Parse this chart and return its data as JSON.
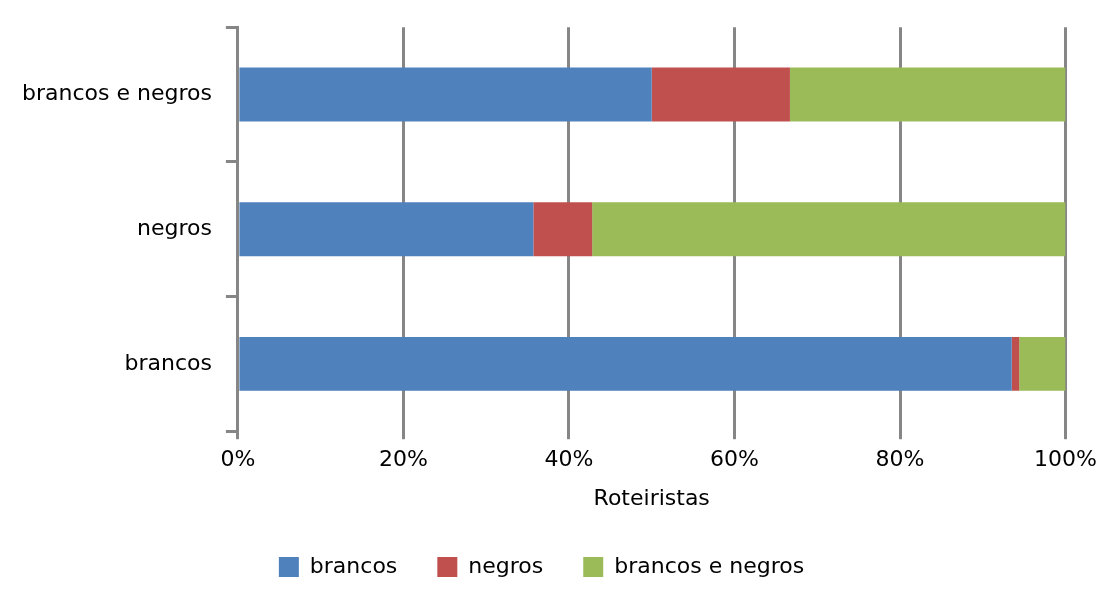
{
  "chart_data": {
    "type": "bar",
    "orientation": "horizontal",
    "stacked": true,
    "xlabel": "Roteiristas",
    "categories": [
      "brancos e negros",
      "negros",
      "brancos"
    ],
    "series": [
      {
        "name": "brancos",
        "color": "#4f81bd",
        "values": [
          50,
          35.7,
          93.5
        ]
      },
      {
        "name": "negros",
        "color": "#c0504d",
        "values": [
          16.7,
          7.1,
          0.9
        ]
      },
      {
        "name": "brancos e negros",
        "color": "#9bbb59",
        "values": [
          33.3,
          57.2,
          5.6
        ]
      }
    ],
    "xlim": [
      0,
      100
    ],
    "xticks": [
      {
        "value": 0,
        "label": "0%"
      },
      {
        "value": 20,
        "label": "20%"
      },
      {
        "value": 40,
        "label": "40%"
      },
      {
        "value": 60,
        "label": "60%"
      },
      {
        "value": 80,
        "label": "80%"
      },
      {
        "value": 100,
        "label": "100%"
      }
    ],
    "grid": "x",
    "legend": "bottom"
  }
}
